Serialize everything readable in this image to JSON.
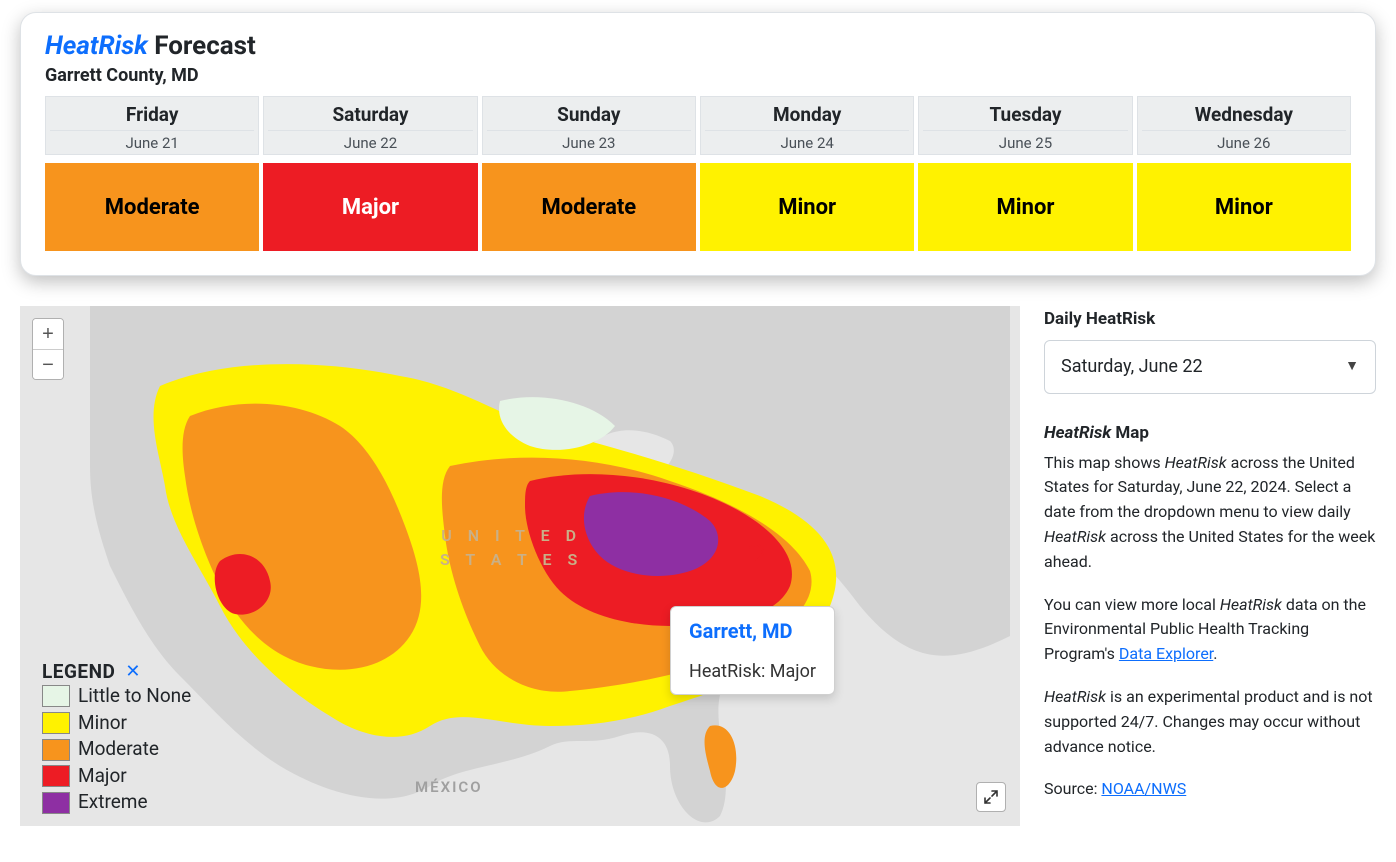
{
  "forecast": {
    "title_prefix": "HeatRisk",
    "title_suffix": " Forecast",
    "location": "Garrett County, MD",
    "days": [
      {
        "name": "Friday",
        "date": "June 21",
        "risk": "Moderate",
        "bg": "#f7941d",
        "fg": "#000000"
      },
      {
        "name": "Saturday",
        "date": "June 22",
        "risk": "Major",
        "bg": "#ed1c24",
        "fg": "#ffffff"
      },
      {
        "name": "Sunday",
        "date": "June 23",
        "risk": "Moderate",
        "bg": "#f7941d",
        "fg": "#000000"
      },
      {
        "name": "Monday",
        "date": "June 24",
        "risk": "Minor",
        "bg": "#fff200",
        "fg": "#000000"
      },
      {
        "name": "Tuesday",
        "date": "June 25",
        "risk": "Minor",
        "bg": "#fff200",
        "fg": "#000000"
      },
      {
        "name": "Wednesday",
        "date": "June 26",
        "risk": "Minor",
        "bg": "#fff200",
        "fg": "#000000"
      }
    ]
  },
  "side": {
    "daily_label": "Daily HeatRisk",
    "selected_date": "Saturday, June 22",
    "map_heading_prefix": "HeatRisk",
    "map_heading_suffix": " Map",
    "p1_a": "This map shows ",
    "p1_b": " across the United States for Saturday, June 22, 2024. Select a date from the dropdown menu to view daily ",
    "p1_c": " across the United States for the week ahead.",
    "p2_a": "You can view more local ",
    "p2_b": " data on the Environmental Public Health Tracking Program's ",
    "p2_link": "Data Explorer",
    "p2_c": ".",
    "p3_a": "HeatRisk",
    "p3_b": " is an experimental product and is not supported 24/7. Changes may occur without advance notice.",
    "source_label": "Source: ",
    "source_link": "NOAA/NWS"
  },
  "legend": {
    "title": "LEGEND",
    "items": [
      {
        "label": "Little to None",
        "color": "#e6f5e6"
      },
      {
        "label": "Minor",
        "color": "#fff200"
      },
      {
        "label": "Moderate",
        "color": "#f7941d"
      },
      {
        "label": "Major",
        "color": "#ed1c24"
      },
      {
        "label": "Extreme",
        "color": "#8e2fa3"
      }
    ]
  },
  "tooltip": {
    "title": "Garrett, MD",
    "body": "HeatRisk: Major"
  },
  "colors": {
    "land": "#d3d3d3",
    "water": "#e6e6e6",
    "accent": "#0d6efd"
  },
  "map_labels": {
    "mexico": "MÉXICO",
    "us1": "U N I T E D",
    "us2": "S T A T E S"
  }
}
